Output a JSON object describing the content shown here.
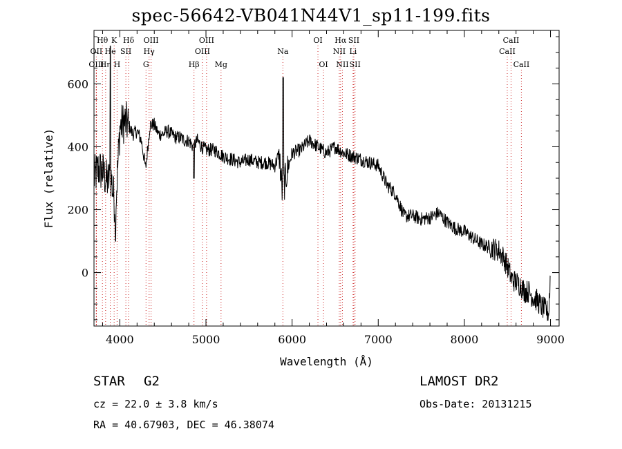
{
  "title": "spec-56642-VB041N44V1_sp11-199.fits",
  "info": {
    "object_type": "STAR",
    "object_class": "G2",
    "survey": "LAMOST DR2",
    "cz": "cz = 22.0 ± 3.8 km/s",
    "obs_date": "Obs-Date: 20131215",
    "radec": "RA =  40.67903, DEC =  46.38074"
  },
  "chart_data": {
    "type": "line",
    "xlabel": "Wavelength (Å)",
    "ylabel": "Flux (relative)",
    "xlim": [
      3700,
      9100
    ],
    "ylim": [
      -170,
      770
    ],
    "xticks": [
      4000,
      5000,
      6000,
      7000,
      8000,
      9000
    ],
    "yticks": [
      0,
      200,
      400,
      600
    ],
    "series": [
      {
        "x": [
          3700,
          3750,
          3800,
          3850,
          3900,
          3950,
          4000,
          4050,
          4100,
          4150,
          4200,
          4250,
          4300,
          4350,
          4400,
          4450,
          4500,
          4550,
          4600,
          4650,
          4700,
          4750,
          4800,
          4850,
          4900,
          4950,
          5000,
          5100,
          5200,
          5300,
          5400,
          5500,
          5600,
          5700,
          5800,
          5850,
          5890,
          5900,
          5950,
          6000,
          6100,
          6200,
          6300,
          6400,
          6500,
          6600,
          6700,
          6800,
          6900,
          7000,
          7100,
          7200,
          7300,
          7400,
          7500,
          7600,
          7700,
          7800,
          7900,
          8000,
          8100,
          8200,
          8300,
          8400,
          8450,
          8500,
          8550,
          8600,
          8650,
          8700,
          8750,
          8800,
          8850,
          8900,
          8950,
          8980,
          9000
        ],
        "y": [
          300,
          330,
          320,
          290,
          300,
          200,
          460,
          480,
          470,
          440,
          450,
          420,
          330,
          470,
          470,
          440,
          440,
          450,
          440,
          430,
          430,
          420,
          420,
          400,
          420,
          400,
          390,
          390,
          370,
          360,
          350,
          360,
          350,
          350,
          340,
          380,
          240,
          270,
          330,
          380,
          390,
          420,
          400,
          380,
          400,
          380,
          370,
          360,
          350,
          340,
          280,
          250,
          180,
          180,
          170,
          175,
          190,
          160,
          140,
          130,
          110,
          90,
          80,
          70,
          50,
          20,
          -20,
          -30,
          -40,
          -60,
          -60,
          -80,
          -90,
          -110,
          -120,
          -130,
          0
        ]
      }
    ],
    "lines": [
      {
        "name": "Hθ",
        "wave": 3798,
        "row": 1
      },
      {
        "name": "OII",
        "wave": 3727,
        "row": 2
      },
      {
        "name": "OIII",
        "wave": 3727,
        "row": 3
      },
      {
        "name": "He",
        "wave": 3889,
        "row": 2
      },
      {
        "name": "Hη",
        "wave": 3835,
        "row": 3
      },
      {
        "name": "K",
        "wave": 3934,
        "row": 1
      },
      {
        "name": "H",
        "wave": 3968,
        "row": 3
      },
      {
        "name": "SII",
        "wave": 4070,
        "row": 2
      },
      {
        "name": "Hδ",
        "wave": 4102,
        "row": 1
      },
      {
        "name": "OIII",
        "wave": 4363,
        "row": 1
      },
      {
        "name": "Hγ",
        "wave": 4340,
        "row": 2
      },
      {
        "name": "G",
        "wave": 4304,
        "row": 3
      },
      {
        "name": "Hβ",
        "wave": 4861,
        "row": 3
      },
      {
        "name": "OIII",
        "wave": 5007,
        "row": 1
      },
      {
        "name": "OIII",
        "wave": 4959,
        "row": 2
      },
      {
        "name": "Mg",
        "wave": 5175,
        "row": 3
      },
      {
        "name": "Na",
        "wave": 5893,
        "row": 2
      },
      {
        "name": "OI",
        "wave": 6300,
        "row": 1
      },
      {
        "name": "OI",
        "wave": 6364,
        "row": 3
      },
      {
        "name": "Hα",
        "wave": 6563,
        "row": 1
      },
      {
        "name": "SII",
        "wave": 6717,
        "row": 1
      },
      {
        "name": "NII",
        "wave": 6548,
        "row": 2
      },
      {
        "name": "Li",
        "wave": 6708,
        "row": 2
      },
      {
        "name": "NII",
        "wave": 6584,
        "row": 3
      },
      {
        "name": "SII",
        "wave": 6731,
        "row": 3
      },
      {
        "name": "CaII",
        "wave": 8542,
        "row": 1
      },
      {
        "name": "CaII",
        "wave": 8498,
        "row": 2
      },
      {
        "name": "CaII",
        "wave": 8662,
        "row": 3
      }
    ]
  }
}
